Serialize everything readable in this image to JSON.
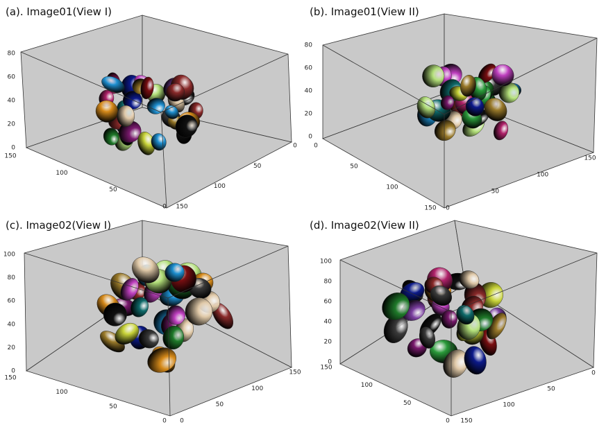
{
  "panels": [
    {
      "title": "(a). Image01(View I)",
      "z_ticks": [
        80,
        60,
        40,
        20,
        0
      ],
      "left_ticks": [
        150,
        100,
        50,
        0
      ],
      "right_ticks": [
        150,
        100,
        50,
        0
      ]
    },
    {
      "title": "(b). Image01(View II)",
      "z_ticks": [
        80,
        60,
        40,
        20,
        0
      ],
      "left_ticks": [
        0,
        50,
        100,
        150
      ],
      "right_ticks": [
        0,
        50,
        100,
        150
      ]
    },
    {
      "title": "(c). Image02(View I)",
      "z_ticks": [
        100,
        80,
        60,
        40,
        20,
        0
      ],
      "left_ticks": [
        150,
        100,
        50,
        0
      ],
      "right_ticks": [
        0,
        50,
        100,
        150
      ]
    },
    {
      "title": "(d). Image02(View II)",
      "z_ticks": [
        100,
        80,
        60,
        40,
        20,
        0
      ],
      "left_ticks": [
        150,
        100,
        50,
        0
      ],
      "right_ticks": [
        150,
        100,
        50,
        0
      ]
    }
  ]
}
